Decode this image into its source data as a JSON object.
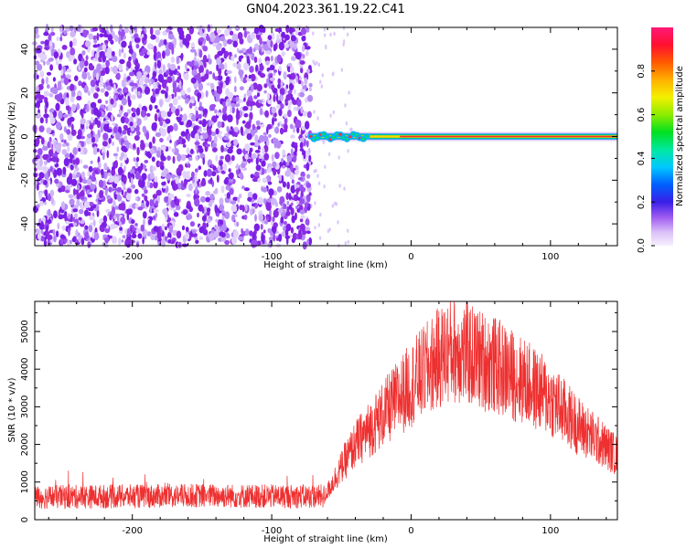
{
  "figure_title": "GN04.2023.361.19.22.C41",
  "colors": {
    "snr_line": "#ee3030",
    "noise_purple": "#8a2be2",
    "noise_light": "#c9a8f5",
    "axis": "#000000"
  },
  "chart_data": [
    {
      "type": "heatmap",
      "title": "GN04.2023.361.19.22.C41",
      "xlabel": "Height of straight line (km)",
      "ylabel": "Frequency (Hz)",
      "xlim": [
        -270,
        148
      ],
      "ylim": [
        -50,
        50
      ],
      "xticks": [
        -200,
        -100,
        0,
        100
      ],
      "xtick_labels": [
        "-200",
        "-100",
        "0",
        "100"
      ],
      "yticks": [
        -40,
        -20,
        0,
        20,
        40
      ],
      "ytick_labels": [
        "-40",
        "-20",
        "0",
        "20",
        "40"
      ],
      "colorbar": {
        "label": "Normalized spectral amplitude",
        "range": [
          0.0,
          1.0
        ],
        "ticks": [
          0.0,
          0.2,
          0.4,
          0.6,
          0.8
        ],
        "tick_labels": [
          "0.0",
          "0.2",
          "0.4",
          "0.6",
          "0.8"
        ]
      },
      "features": {
        "noise_region_x": [
          -270,
          -72
        ],
        "signal_start_x": -72,
        "signal_frequency_hz": 0
      },
      "grid": false
    },
    {
      "type": "line",
      "xlabel": "Height of straight line (km)",
      "ylabel": "SNR (10 * v/v)",
      "xlim": [
        -270,
        148
      ],
      "ylim": [
        0,
        5800
      ],
      "xticks": [
        -200,
        -100,
        0,
        100
      ],
      "xtick_labels": [
        "-200",
        "-100",
        "0",
        "100"
      ],
      "yticks": [
        0,
        1000,
        2000,
        3000,
        4000,
        5000
      ],
      "ytick_labels": [
        "0",
        "1000",
        "2000",
        "3000",
        "4000",
        "5000"
      ],
      "series_envelope": {
        "x": [
          -270,
          -200,
          -150,
          -100,
          -62,
          -50,
          -40,
          -20,
          0,
          20,
          30,
          40,
          60,
          80,
          100,
          120,
          148
        ],
        "y": [
          600,
          620,
          640,
          620,
          620,
          1400,
          2000,
          2800,
          3600,
          4300,
          4550,
          4400,
          4100,
          3700,
          3200,
          2500,
          1700
        ]
      },
      "grid": false
    }
  ]
}
